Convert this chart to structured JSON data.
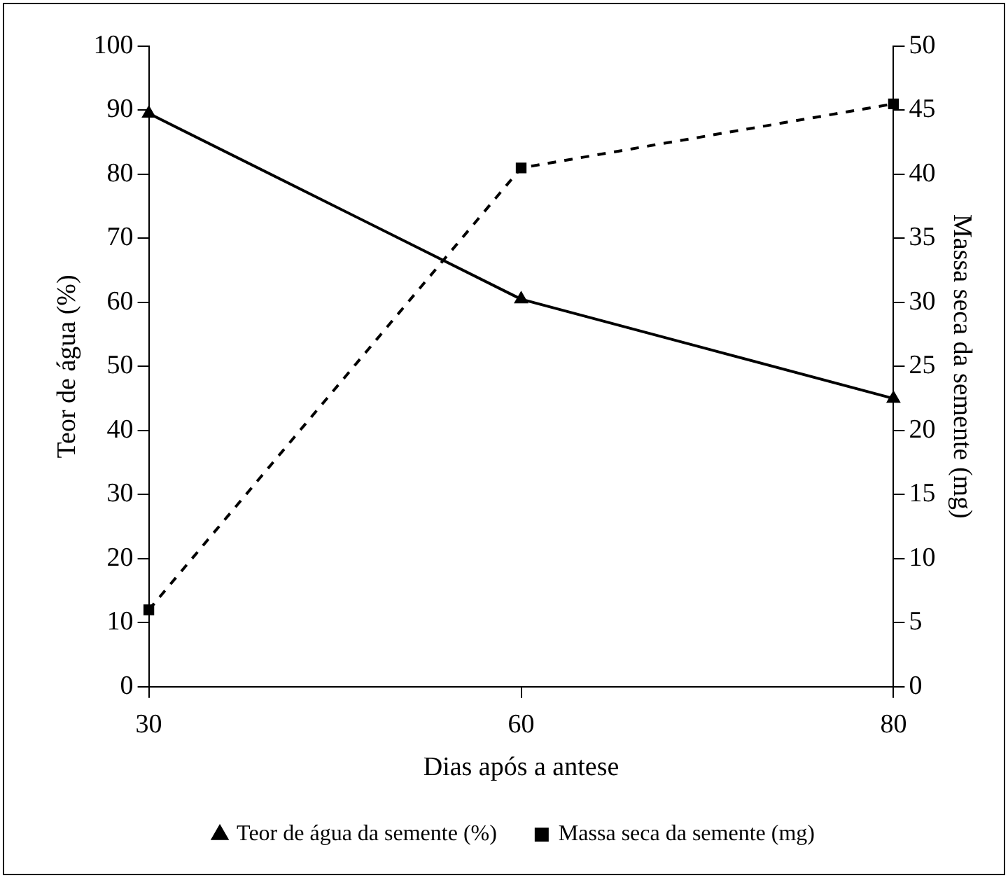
{
  "chart_data": {
    "type": "line",
    "xlabel": "Dias após a antese",
    "ylabel": "Teor de água (%)",
    "y2label": "Massa seca da semente (mg)",
    "categories": [
      "30",
      "60",
      "80"
    ],
    "series": [
      {
        "name": "Teor de água da semente (%)",
        "color": "#000000",
        "values": [
          89.5,
          60.5,
          45
        ],
        "marker": "triangle",
        "line_style": "solid"
      },
      {
        "name": "Massa seca da semente (mg)",
        "color": "#000000",
        "values": [
          6,
          40.5,
          45.5
        ],
        "marker": "square",
        "line_style": "dashed",
        "axis": "y2"
      }
    ],
    "ylim": [
      0,
      100
    ],
    "yticks": [
      0,
      10,
      20,
      30,
      40,
      50,
      60,
      70,
      80,
      90,
      100
    ],
    "y2lim": [
      0,
      50
    ],
    "y2ticks": [
      0,
      5,
      10,
      15,
      20,
      25,
      30,
      35,
      40,
      45,
      50
    ],
    "grid": false,
    "legend": "bottom"
  }
}
